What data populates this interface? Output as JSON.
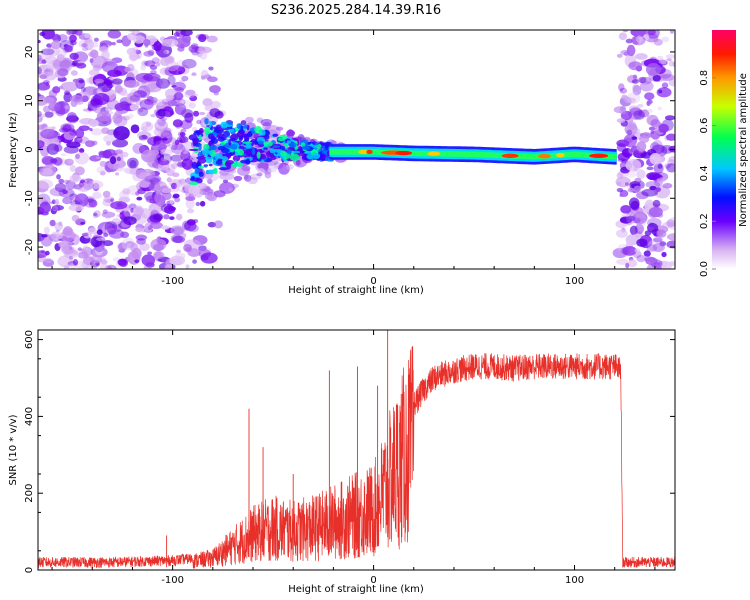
{
  "title": "S236.2025.284.14.39.R16",
  "chart_data": [
    {
      "type": "heatmap",
      "xlabel": "Height of straight line (km)",
      "ylabel": "Frequency (Hz)",
      "xlim": [
        -167,
        150
      ],
      "ylim": [
        -24.5,
        24.5
      ],
      "xticks": [
        -100,
        0,
        100
      ],
      "yticks": [
        -20,
        -10,
        0,
        10,
        20
      ],
      "colorbar": {
        "label": "Normalized spectral amplitude",
        "range": [
          0,
          1
        ],
        "ticks": [
          "0.0",
          "0.2",
          "0.4",
          "0.6",
          "0.8"
        ]
      },
      "ridge": [
        {
          "x": -85,
          "f": 0.5
        },
        {
          "x": -60,
          "f": 1.0
        },
        {
          "x": -40,
          "f": 0.0
        },
        {
          "x": -20,
          "f": -0.5
        },
        {
          "x": 0,
          "f": -0.5
        },
        {
          "x": 20,
          "f": -0.8
        },
        {
          "x": 50,
          "f": -1.0
        },
        {
          "x": 80,
          "f": -1.5
        },
        {
          "x": 100,
          "f": -1.0
        },
        {
          "x": 120,
          "f": -1.5
        }
      ],
      "noise_regions": [
        [
          -167,
          -85
        ],
        [
          122,
          150
        ]
      ]
    },
    {
      "type": "line",
      "xlabel": "Height of straight line (km)",
      "ylabel": "SNR (10 * v/v)",
      "xlim": [
        -167,
        150
      ],
      "ylim": [
        0,
        625
      ],
      "xticks": [
        -100,
        0,
        100
      ],
      "yticks": [
        0,
        200,
        400,
        600
      ],
      "color": "#e8302a",
      "series": [
        {
          "name": "SNR",
          "x": [
            -167,
            -130,
            -100,
            -90,
            -80,
            -70,
            -60,
            -50,
            -40,
            -30,
            -20,
            -10,
            0,
            5,
            10,
            15,
            20,
            25,
            30,
            40,
            50,
            60,
            70,
            80,
            90,
            100,
            110,
            120,
            123,
            124,
            130,
            150
          ],
          "y": [
            20,
            20,
            25,
            30,
            40,
            80,
            120,
            140,
            130,
            140,
            160,
            180,
            200,
            260,
            320,
            380,
            430,
            470,
            500,
            520,
            530,
            530,
            525,
            530,
            530,
            530,
            530,
            530,
            520,
            20,
            20,
            20
          ]
        }
      ],
      "spikes": [
        {
          "x": -103,
          "y": 90
        },
        {
          "x": -62,
          "y": 420
        },
        {
          "x": -55,
          "y": 320
        },
        {
          "x": -22,
          "y": 520
        },
        {
          "x": -8,
          "y": 530
        },
        {
          "x": 7,
          "y": 625
        },
        {
          "x": 2,
          "y": 480
        },
        {
          "x": -40,
          "y": 250
        }
      ]
    }
  ]
}
